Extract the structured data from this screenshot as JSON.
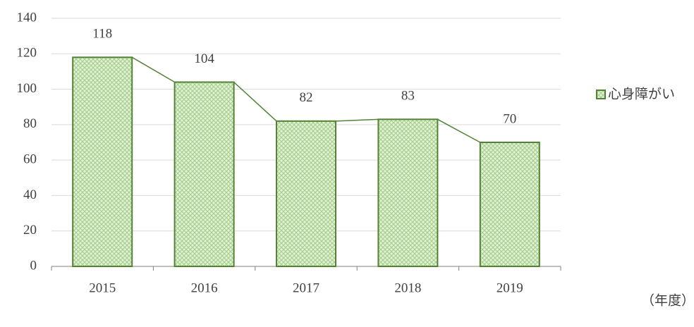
{
  "chart_data": {
    "type": "bar",
    "categories": [
      "2015",
      "2016",
      "2017",
      "2018",
      "2019"
    ],
    "series": [
      {
        "name": "心身障がい",
        "color": "#548235",
        "values": [
          118,
          104,
          82,
          83,
          70
        ]
      }
    ],
    "ylim": [
      0,
      140
    ],
    "yticks": [
      0,
      20,
      40,
      60,
      80,
      100,
      120,
      140
    ],
    "grid": true,
    "x_label": "（年度）",
    "legend": "right"
  }
}
